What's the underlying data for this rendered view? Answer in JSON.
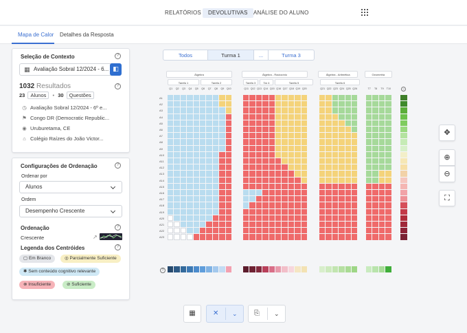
{
  "topnav": {
    "items": [
      {
        "label": "RELATÓRIOS",
        "active": false
      },
      {
        "label": "DEVOLUTIVAS",
        "active": true
      },
      {
        "label": "ANÁLISE DO ALUNO",
        "active": false
      }
    ],
    "apps_icon": "grid-icon"
  },
  "subtabs": {
    "items": [
      {
        "label": "Mapa de Calor",
        "active": true
      },
      {
        "label": "Detalhes da Resposta",
        "active": false
      }
    ]
  },
  "context": {
    "title": "Seleção de Contexto",
    "evaluation_select": "Avaliação Sobral 12/2024 - 6...",
    "results_count": "1032",
    "results_label": "Resultados",
    "students_count": "23",
    "students_label": "Alunos",
    "questions_count": "30",
    "questions_label": "Questões",
    "details": [
      {
        "icon": "calendar-icon",
        "text": "Avaliação Sobral 12/2024 - 6º e..."
      },
      {
        "icon": "flag-icon",
        "text": "Congo DR (Democratic Republic..."
      },
      {
        "icon": "location-icon",
        "text": "Uruburetama, CE"
      },
      {
        "icon": "school-icon",
        "text": "Colégio Raízes do João Victor..."
      }
    ]
  },
  "ordering": {
    "title": "Configurações de Ordenação",
    "order_by_label": "Ordenar por",
    "order_by_value": "Alunos",
    "order_label": "Ordem",
    "order_value": "Desempenho Crescente",
    "ordination_title": "Ordenação",
    "ordination_value": "Crescente",
    "legend_title": "Legenda dos Centróides",
    "legend": [
      {
        "label": "Em Branco",
        "color": "#e4e6ea"
      },
      {
        "label": "Parcialmente Suficiente",
        "color": "#f8efc4"
      },
      {
        "label": "Sem conteúdo cognitivo relevante",
        "color": "#cfe8f5"
      },
      {
        "label": "Insuficiente",
        "color": "#f6b3b8"
      },
      {
        "label": "Suficiente",
        "color": "#c9ecc6"
      }
    ]
  },
  "class_tabs": [
    {
      "label": "Todos",
      "active": false
    },
    {
      "label": "Turma 1",
      "active": true
    },
    {
      "label": "...",
      "active": false
    },
    {
      "label": "Turma 3",
      "active": false
    }
  ],
  "heatmap": {
    "groups": [
      {
        "label": "Álgebra",
        "subs": [
          {
            "label": "Tarefa 1"
          },
          {
            "label": "Tarefa 2"
          }
        ],
        "questions": [
          "Q1",
          "Q2",
          "Q3",
          "Q4",
          "Q5",
          "Q6",
          "Q7",
          "Q8",
          "Q9",
          "Q10"
        ]
      },
      {
        "label": "Álgebra - Raciocínio",
        "subs": [
          {
            "label": "Tarefa 3"
          },
          {
            "label": "Tar 4"
          },
          {
            "label": "Tarefa 5"
          }
        ],
        "questions": [
          "Q11",
          "Q12",
          "Q13",
          "Q14",
          "Q15",
          "Q16",
          "Q17",
          "Q18",
          "Q19",
          "Q20"
        ]
      },
      {
        "label": "Álgebra - Aritmética",
        "subs": [
          {
            "label": "Tarefa 6"
          }
        ],
        "questions": [
          "Q21",
          "Q22",
          "Q23",
          "Q24",
          "Q25",
          "Q26"
        ]
      },
      {
        "label": "Geometria",
        "subs": [],
        "questions": [
          "T7",
          "T8",
          "T9",
          "T10"
        ]
      }
    ],
    "rows": [
      "A1",
      "A2",
      "A3",
      "A4",
      "A5",
      "A6",
      "A7",
      "A8",
      "A9",
      "A10",
      "A11",
      "A12",
      "A13",
      "A14",
      "A15",
      "A16",
      "A17",
      "A18",
      "A19",
      "A20",
      "A21",
      "A22",
      "A23"
    ],
    "colors": {
      "blue": "#b9dcef",
      "yellow": "#f4d37a",
      "red": "#ef6a6a",
      "green": "#a6d99a",
      "white": "#ffffff",
      "gray": "#eceef1"
    }
  },
  "side_tools": [
    "move-icon",
    "zoom-in-icon",
    "zoom-out-icon",
    "fit-screen-icon"
  ],
  "bottom_toolbar": [
    "calendar-grid-icon",
    "close-icon",
    "chevron-down-icon",
    "export-icon",
    "chevron-down-icon"
  ]
}
